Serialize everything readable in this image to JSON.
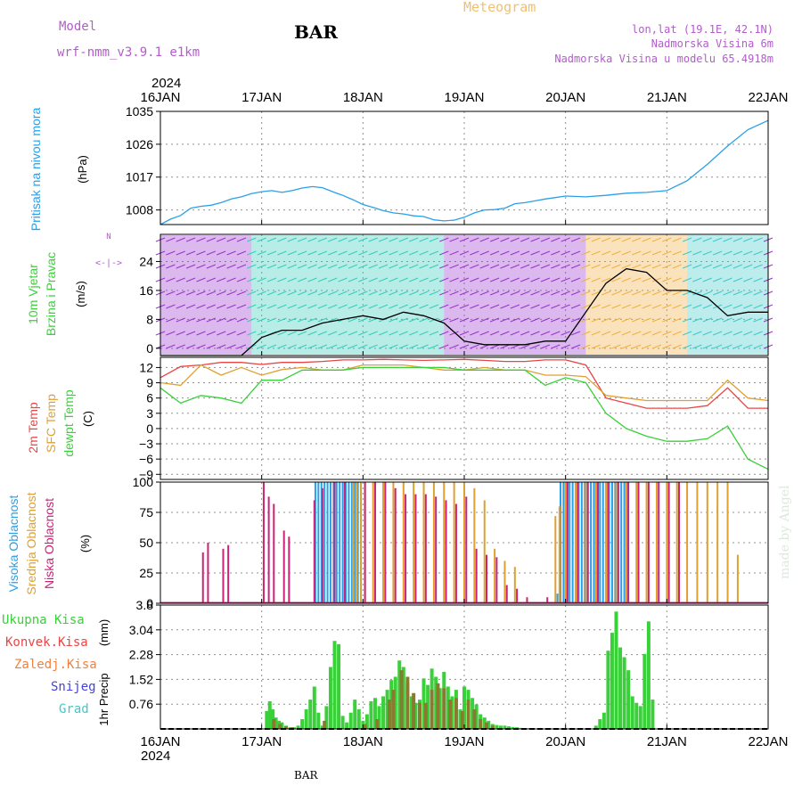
{
  "header": {
    "model_label": "Model",
    "model_name": "wrf-nmm_v3.9.1 e1km",
    "station": "BAR",
    "title": "Meteogram",
    "coords": "lon,lat (19.1E, 42.1N)",
    "elevation": "Nadmorska Visina 6m",
    "model_elevation": "Nadmorska Visina u modelu 65.4918m",
    "footer_station": "BAR",
    "watermark": "made by Angel"
  },
  "colors": {
    "purple": "#b35ccc",
    "pressure": "#2aa0e8",
    "temp2m": "#e84545",
    "sfc": "#e0a030",
    "dewpt": "#3ad03a",
    "orange": "#f0a040",
    "grid": "#909090"
  },
  "chart_data": [
    {
      "type": "line",
      "name": "pressure",
      "ylabel": "Pritisak na nivou mora",
      "unit": "(hPa)",
      "ylim": [
        1004,
        1035
      ],
      "yticks": [
        1008,
        1017,
        1026,
        1035
      ],
      "xlabels": [
        "16JAN",
        "17JAN",
        "18JAN",
        "19JAN",
        "20JAN",
        "21JAN",
        "22JAN"
      ],
      "year": "2024",
      "series": [
        {
          "x": [
            0,
            0.1,
            0.2,
            0.3,
            0.4,
            0.5,
            0.6,
            0.7,
            0.8,
            0.9,
            1.0,
            1.1,
            1.2,
            1.3,
            1.4,
            1.5,
            1.6,
            1.7,
            1.8,
            1.9,
            2.0,
            2.1,
            2.2,
            2.3,
            2.4,
            2.5,
            2.6,
            2.7,
            2.8,
            2.9,
            3.0,
            3.1,
            3.2,
            3.3,
            3.4,
            3.5,
            3.6,
            3.7,
            3.8,
            3.9,
            4.0,
            4.2,
            4.4,
            4.6,
            4.8,
            5.0,
            5.2,
            5.4,
            5.6,
            5.8,
            6.0
          ],
          "y": [
            1004,
            1005.5,
            1006.5,
            1008.5,
            1009,
            1009.3,
            1010,
            1011,
            1011.6,
            1012.5,
            1013,
            1013.3,
            1012.8,
            1013.3,
            1014,
            1014.4,
            1014.1,
            1013,
            1012,
            1010.8,
            1009.5,
            1008.7,
            1007.8,
            1007.2,
            1006.9,
            1006.4,
            1006.2,
            1005.3,
            1005,
            1005.2,
            1006,
            1007.2,
            1008,
            1008.1,
            1008.5,
            1009.7,
            1010,
            1010.5,
            1011,
            1011.4,
            1011.8,
            1011.6,
            1012,
            1012.6,
            1012.8,
            1013.3,
            1016,
            1020.5,
            1025.5,
            1030,
            1032.5
          ]
        }
      ]
    },
    {
      "type": "line",
      "name": "wind",
      "ylabel": "10m Vjetar",
      "ylabel2": "Brzina i Pravac",
      "unit": "(m/s)",
      "ylim": [
        -2,
        31.5
      ],
      "yticks": [
        0,
        8,
        16,
        24
      ],
      "compass": "N",
      "series": [
        {
          "name": "speed",
          "x": [
            0,
            0.2,
            0.4,
            0.6,
            0.8,
            1.0,
            1.2,
            1.4,
            1.6,
            1.8,
            2.0,
            2.2,
            2.4,
            2.6,
            2.8,
            3.0,
            3.2,
            3.4,
            3.6,
            3.8,
            4.0,
            4.2,
            4.4,
            4.6,
            4.8,
            5.0,
            5.2,
            5.4,
            5.6,
            5.8,
            6.0
          ],
          "y": [
            -2,
            -2,
            -2,
            -2,
            -2,
            3,
            5,
            5,
            7,
            8,
            9,
            8,
            10,
            9,
            7,
            2,
            1,
            1,
            1,
            2,
            2,
            10,
            18,
            22,
            21,
            16,
            16,
            14,
            9,
            10,
            10
          ]
        }
      ]
    },
    {
      "type": "line",
      "name": "temperature",
      "ylabel": "2m Temp",
      "ylabel2": "SFC Temp",
      "ylabel3": "dewpt Temp",
      "unit": "(C)",
      "ylim": [
        -10,
        14
      ],
      "yticks": [
        12,
        9,
        6,
        3,
        0,
        -3,
        -6,
        -9
      ],
      "series": [
        {
          "name": "2m Temp",
          "x": [
            0,
            0.2,
            0.4,
            0.6,
            0.8,
            1.0,
            1.2,
            1.4,
            1.6,
            1.8,
            2.0,
            2.2,
            2.4,
            2.6,
            2.8,
            3.0,
            3.2,
            3.4,
            3.6,
            3.8,
            4.0,
            4.2,
            4.4,
            4.6,
            4.8,
            5.0,
            5.2,
            5.4,
            5.6,
            5.8,
            6.0
          ],
          "y": [
            10,
            12.2,
            12.5,
            13,
            13,
            12.6,
            13,
            13,
            13.2,
            13.5,
            13.5,
            13.6,
            13.5,
            13.4,
            13.5,
            13.6,
            13.4,
            13.2,
            13.2,
            13.5,
            13.5,
            12.5,
            6,
            5,
            4,
            4,
            4,
            4.5,
            8,
            4,
            4
          ]
        },
        {
          "name": "SFC Temp",
          "x": [
            0,
            0.2,
            0.4,
            0.6,
            0.8,
            1.0,
            1.2,
            1.4,
            1.6,
            1.8,
            2.0,
            2.2,
            2.4,
            2.6,
            2.8,
            3.0,
            3.2,
            3.4,
            3.6,
            3.8,
            4.0,
            4.2,
            4.4,
            4.6,
            4.8,
            5.0,
            5.2,
            5.4,
            5.6,
            5.8,
            6.0
          ],
          "y": [
            9,
            8.5,
            12.5,
            10.5,
            12,
            10.5,
            11.6,
            12,
            11.5,
            11.5,
            12.5,
            12.5,
            12.5,
            12,
            11.5,
            11.5,
            12,
            11.5,
            11.5,
            10.5,
            10.5,
            10.2,
            6.5,
            6,
            5.5,
            5.5,
            5.5,
            5.5,
            9.5,
            6,
            5.5
          ]
        },
        {
          "name": "dewpt Temp",
          "x": [
            0,
            0.2,
            0.4,
            0.6,
            0.8,
            1.0,
            1.2,
            1.4,
            1.6,
            1.8,
            2.0,
            2.2,
            2.4,
            2.6,
            2.8,
            3.0,
            3.2,
            3.4,
            3.6,
            3.8,
            4.0,
            4.2,
            4.4,
            4.6,
            4.8,
            5.0,
            5.2,
            5.4,
            5.6,
            5.8,
            6.0
          ],
          "y": [
            8,
            5,
            6.5,
            6,
            5,
            9.5,
            9.5,
            11.5,
            11.5,
            11.5,
            12,
            12,
            12,
            12,
            12,
            11.5,
            11.5,
            11.5,
            11.5,
            8.5,
            10,
            9,
            3,
            0,
            -1.5,
            -2.5,
            -2.5,
            -2,
            0.5,
            -6,
            -8
          ]
        }
      ]
    },
    {
      "type": "bar",
      "name": "clouds",
      "ylabel": "Visoka Oblacnost",
      "ylabel2": "Srednja Oblacnost",
      "ylabel3": "Niska Oblacnost",
      "unit": "(%)",
      "ylim": [
        0,
        100
      ],
      "yticks": [
        0,
        25,
        50,
        75,
        100
      ],
      "series": [
        {
          "name": "Visoka Oblacnost",
          "x": [
            1.53,
            1.56,
            1.59,
            1.62,
            1.65,
            1.68,
            1.71,
            1.74,
            1.77,
            1.8,
            1.83,
            1.86,
            1.89,
            1.92,
            1.95,
            1.98,
            3.92,
            3.95,
            3.98,
            4.01,
            4.04,
            4.07,
            4.1,
            4.13,
            4.16,
            4.19,
            4.22,
            4.25,
            4.28,
            4.31,
            4.34,
            4.37,
            4.4,
            4.43,
            4.46,
            4.49,
            4.52,
            4.55,
            4.58,
            4.61
          ],
          "y": [
            100,
            100,
            100,
            100,
            100,
            100,
            100,
            100,
            100,
            100,
            100,
            100,
            100,
            100,
            100,
            100,
            8,
            100,
            100,
            100,
            100,
            100,
            100,
            100,
            100,
            100,
            100,
            100,
            100,
            100,
            100,
            100,
            100,
            100,
            100,
            100,
            100,
            100,
            100,
            100
          ]
        },
        {
          "name": "Srednja Oblacnost",
          "x": [
            1.9,
            1.94,
            1.98,
            2.02,
            2.1,
            2.2,
            2.3,
            2.4,
            2.5,
            2.6,
            2.7,
            2.8,
            2.9,
            3.0,
            3.1,
            3.2,
            3.3,
            3.4,
            3.5,
            3.6,
            3.9,
            3.94,
            4.0,
            4.1,
            4.2,
            4.3,
            4.4,
            4.5,
            4.6,
            4.7,
            4.8,
            4.9,
            5.0,
            5.1,
            5.2,
            5.3,
            5.4,
            5.5,
            5.6,
            5.7
          ],
          "y": [
            100,
            100,
            100,
            100,
            100,
            100,
            100,
            100,
            100,
            100,
            100,
            100,
            100,
            100,
            95,
            85,
            45,
            35,
            30,
            0,
            72,
            80,
            100,
            100,
            100,
            100,
            100,
            100,
            100,
            100,
            100,
            100,
            100,
            100,
            100,
            100,
            100,
            100,
            100,
            40
          ]
        },
        {
          "name": "Niska Oblacnost",
          "x": [
            0.42,
            0.47,
            0.62,
            0.67,
            1.02,
            1.07,
            1.12,
            1.22,
            1.27,
            1.52,
            1.6,
            1.72,
            1.82,
            2.02,
            2.12,
            2.22,
            2.32,
            2.42,
            2.52,
            2.62,
            2.72,
            2.82,
            2.92,
            3.02,
            3.12,
            3.22,
            3.32,
            3.42,
            3.52,
            3.62,
            3.72,
            3.82,
            4.02,
            4.12,
            4.22,
            4.32,
            4.42,
            4.52,
            4.62,
            4.72,
            4.82,
            4.92,
            5.02,
            5.12
          ],
          "y": [
            42,
            50,
            45,
            48,
            100,
            88,
            82,
            60,
            55,
            85,
            95,
            100,
            100,
            100,
            100,
            100,
            95,
            90,
            90,
            90,
            88,
            85,
            82,
            88,
            45,
            40,
            38,
            15,
            12,
            5,
            0,
            5,
            100,
            100,
            100,
            100,
            100,
            100,
            100,
            100,
            100,
            100,
            100,
            100
          ]
        }
      ]
    },
    {
      "type": "bar",
      "name": "precip",
      "ylabel": "1hr Precip",
      "unit": "(mm)",
      "ylim": [
        0,
        3.8
      ],
      "yticks": [
        0.76,
        1.52,
        2.28,
        3.04,
        3.8
      ],
      "ytick_labels": [
        "0.76",
        "1.52",
        "2.28",
        "3.04",
        "3.8"
      ],
      "legend": [
        "Ukupna Kisa",
        "Konvek.Kisa",
        "Zaledj.Kisa",
        "Snijeg",
        "Grad"
      ],
      "series": [
        {
          "name": "Ukupna Kisa",
          "x": [
            1.05,
            1.08,
            1.11,
            1.14,
            1.17,
            1.2,
            1.24,
            1.28,
            1.32,
            1.36,
            1.4,
            1.44,
            1.48,
            1.52,
            1.56,
            1.6,
            1.64,
            1.68,
            1.72,
            1.76,
            1.8,
            1.84,
            1.88,
            1.92,
            1.96,
            2.0,
            2.04,
            2.08,
            2.12,
            2.16,
            2.2,
            2.24,
            2.28,
            2.32,
            2.36,
            2.4,
            2.44,
            2.48,
            2.52,
            2.56,
            2.6,
            2.64,
            2.68,
            2.72,
            2.76,
            2.8,
            2.84,
            2.88,
            2.92,
            2.96,
            3.0,
            3.04,
            3.08,
            3.12,
            3.16,
            3.2,
            3.24,
            3.28,
            3.32,
            3.36,
            3.4,
            3.44,
            3.48,
            3.52,
            3.56,
            3.6,
            3.64,
            3.68,
            3.72,
            3.76,
            4.3,
            4.34,
            4.38,
            4.42,
            4.46,
            4.5,
            4.54,
            4.58,
            4.62,
            4.66,
            4.7,
            4.74,
            4.78,
            4.82,
            4.86
          ],
          "y": [
            0.55,
            0.85,
            0.6,
            0.35,
            0.25,
            0.2,
            0.1,
            0.05,
            0.05,
            0.1,
            0.3,
            0.6,
            0.9,
            1.3,
            0.5,
            0.1,
            0.7,
            1.9,
            2.7,
            2.6,
            0.4,
            0.2,
            0.5,
            0.9,
            0.6,
            0.25,
            0.45,
            0.85,
            0.95,
            0.7,
            1.0,
            1.2,
            1.5,
            1.6,
            2.1,
            1.9,
            1.4,
            1.0,
            0.8,
            0.9,
            1.55,
            1.35,
            1.85,
            1.6,
            1.25,
            1.75,
            1.3,
            1.0,
            1.2,
            0.6,
            1.3,
            1.2,
            0.95,
            0.75,
            0.45,
            0.35,
            0.25,
            0.15,
            0.12,
            0.1,
            0.1,
            0.08,
            0.06,
            0.05,
            0.03,
            0.02,
            0.02,
            0.01,
            0.01,
            0.01,
            0.1,
            0.3,
            0.5,
            2.4,
            2.95,
            3.6,
            2.5,
            2.2,
            1.8,
            1.0,
            0.8,
            0.7,
            2.3,
            3.3,
            0.9
          ]
        },
        {
          "name": "Konvek.Kisa",
          "x": [
            1.12,
            1.18,
            1.24,
            1.3,
            1.62,
            2.02,
            2.14,
            2.26,
            2.3,
            2.38,
            2.44,
            2.5,
            2.56,
            2.62,
            2.68,
            2.74,
            2.8,
            2.86,
            2.92,
            2.98,
            3.04,
            3.1,
            3.16,
            3.22,
            3.28
          ],
          "y": [
            0.3,
            0.15,
            0.08,
            0.05,
            0.25,
            0.15,
            0.3,
            0.9,
            1.2,
            1.8,
            1.6,
            1.1,
            0.8,
            0.8,
            1.2,
            1.4,
            1.25,
            0.9,
            0.95,
            0.55,
            0.9,
            0.6,
            0.3,
            0.2,
            0.1
          ]
        }
      ]
    }
  ]
}
